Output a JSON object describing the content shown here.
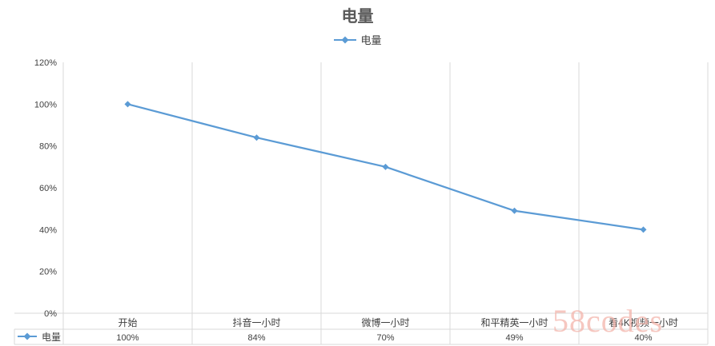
{
  "chart_data": {
    "type": "line",
    "title": "电量",
    "categories": [
      "开始",
      "抖音一小时",
      "微博一小时",
      "和平精英一小时",
      "看4K视频一小时"
    ],
    "series": [
      {
        "name": "电量",
        "values": [
          100,
          84,
          70,
          49,
          40
        ],
        "data_labels": [
          "100%",
          "84%",
          "70%",
          "49%",
          "40%"
        ]
      }
    ],
    "y_ticks": [
      "0%",
      "20%",
      "40%",
      "60%",
      "80%",
      "100%",
      "120%"
    ],
    "ylim": [
      0,
      120
    ],
    "grid": "vertical",
    "legend_position": "top",
    "data_table": true,
    "colors": {
      "line": "#5b9bd5",
      "grid": "#d9d9d9",
      "text": "#404040"
    }
  },
  "watermark": "58codes"
}
